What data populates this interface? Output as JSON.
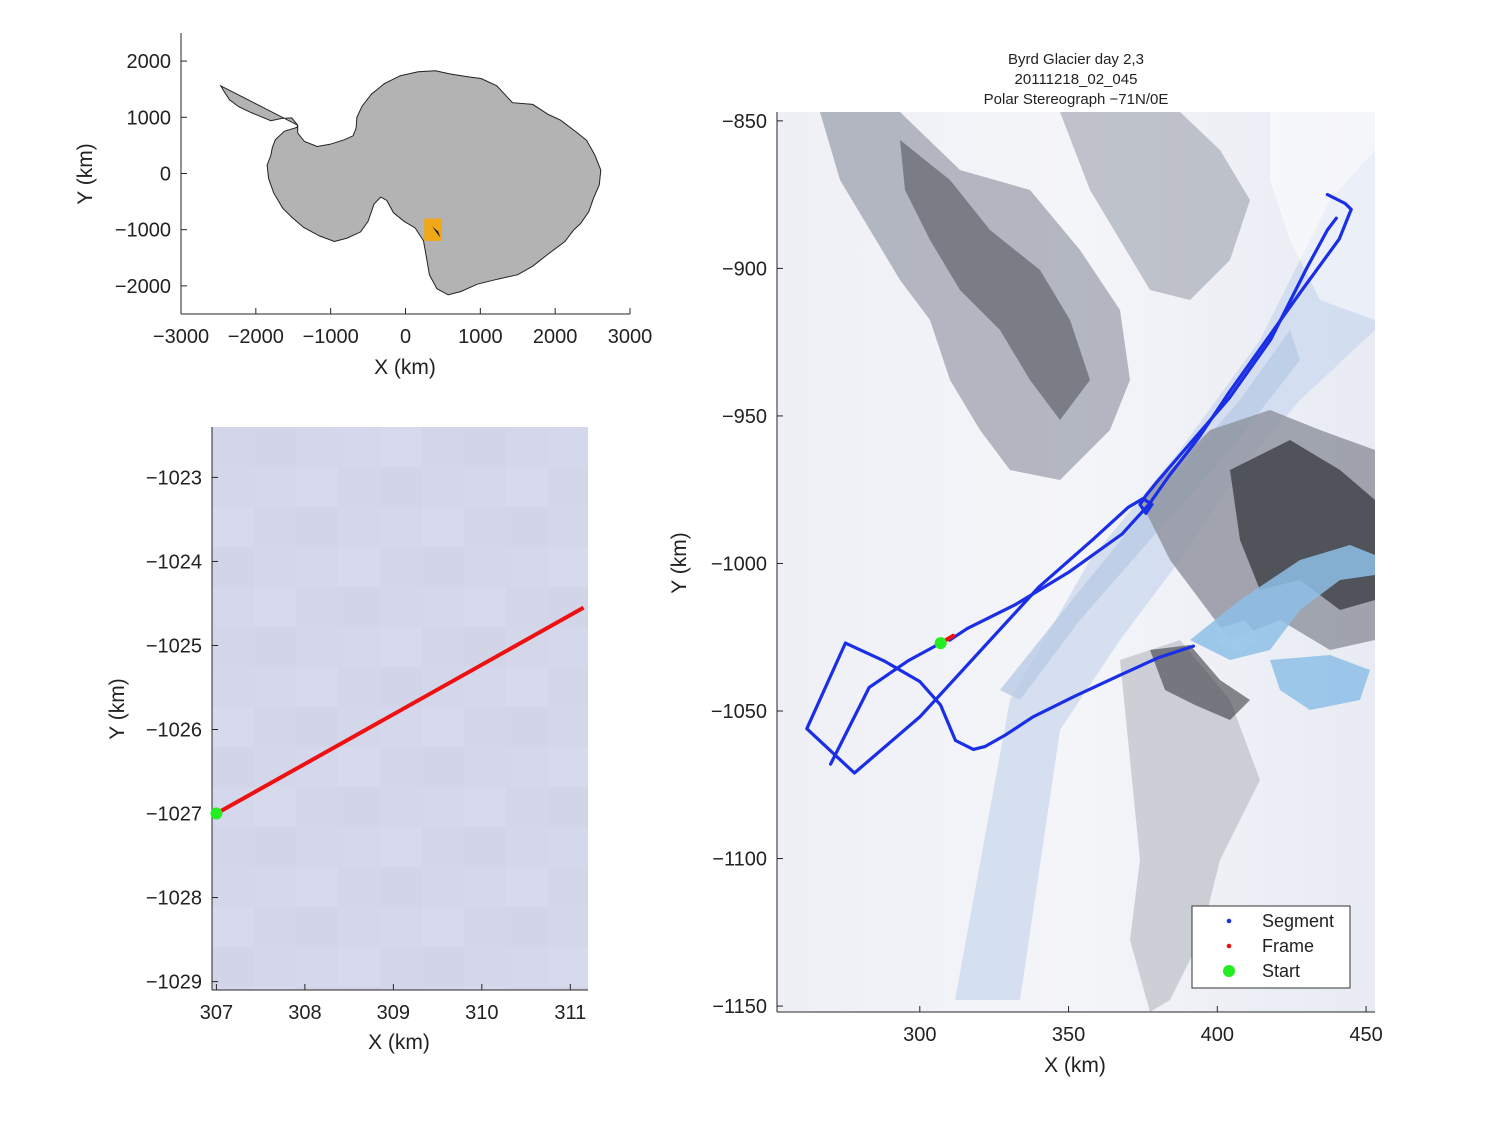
{
  "chart_data": [
    {
      "id": "overview",
      "type": "map",
      "xlabel": "X (km)",
      "ylabel": "Y (km)",
      "xlim": [
        -3000,
        3000
      ],
      "ylim": [
        -2500,
        2500
      ],
      "xticks": [
        -3000,
        -2000,
        -1000,
        0,
        1000,
        2000,
        3000
      ],
      "yticks": [
        -2000,
        -1000,
        0,
        1000,
        2000
      ],
      "xtick_labels": [
        "−3000",
        "−2000",
        "−1000",
        "0",
        "1000",
        "2000",
        "3000"
      ],
      "ytick_labels": [
        "−2000",
        "−1000",
        "0",
        "1000",
        "2000"
      ],
      "land_color": "#b3b3b3",
      "highlight_box": {
        "x": [
          250,
          480
        ],
        "y": [
          -1200,
          -800
        ],
        "color": "#f0a818"
      },
      "coastline": [
        [
          -2470,
          1560
        ],
        [
          -2420,
          1450
        ],
        [
          -2350,
          1310
        ],
        [
          -2230,
          1190
        ],
        [
          -2090,
          1100
        ],
        [
          -1930,
          1010
        ],
        [
          -1800,
          940
        ],
        [
          -1650,
          980
        ],
        [
          -1520,
          990
        ],
        [
          -1440,
          860
        ],
        [
          -1440,
          720
        ],
        [
          -1350,
          570
        ],
        [
          -1180,
          480
        ],
        [
          -1010,
          520
        ],
        [
          -820,
          600
        ],
        [
          -700,
          670
        ],
        [
          -660,
          810
        ],
        [
          -650,
          1000
        ],
        [
          -580,
          1200
        ],
        [
          -450,
          1420
        ],
        [
          -280,
          1600
        ],
        [
          -70,
          1740
        ],
        [
          170,
          1810
        ],
        [
          400,
          1830
        ],
        [
          600,
          1770
        ],
        [
          830,
          1720
        ],
        [
          1010,
          1690
        ],
        [
          1220,
          1560
        ],
        [
          1430,
          1260
        ],
        [
          1700,
          1230
        ],
        [
          1910,
          1050
        ],
        [
          2070,
          950
        ],
        [
          2280,
          740
        ],
        [
          2420,
          590
        ],
        [
          2530,
          330
        ],
        [
          2610,
          60
        ],
        [
          2590,
          -200
        ],
        [
          2510,
          -450
        ],
        [
          2450,
          -680
        ],
        [
          2340,
          -890
        ],
        [
          2250,
          -1000
        ],
        [
          2130,
          -1210
        ],
        [
          1910,
          -1430
        ],
        [
          1700,
          -1650
        ],
        [
          1500,
          -1800
        ],
        [
          1230,
          -1880
        ],
        [
          960,
          -1970
        ],
        [
          740,
          -2100
        ],
        [
          570,
          -2160
        ],
        [
          420,
          -2050
        ],
        [
          320,
          -1800
        ],
        [
          280,
          -1500
        ],
        [
          240,
          -1200
        ],
        [
          130,
          -970
        ],
        [
          -20,
          -850
        ],
        [
          -160,
          -700
        ],
        [
          -250,
          -480
        ],
        [
          -330,
          -420
        ],
        [
          -420,
          -540
        ],
        [
          -500,
          -850
        ],
        [
          -600,
          -1040
        ],
        [
          -780,
          -1150
        ],
        [
          -950,
          -1210
        ],
        [
          -1150,
          -1110
        ],
        [
          -1360,
          -960
        ],
        [
          -1510,
          -790
        ],
        [
          -1640,
          -620
        ],
        [
          -1760,
          -350
        ],
        [
          -1830,
          -90
        ],
        [
          -1850,
          150
        ],
        [
          -1800,
          320
        ],
        [
          -1780,
          460
        ],
        [
          -1740,
          600
        ],
        [
          -1620,
          750
        ],
        [
          -1450,
          820
        ],
        [
          -1440,
          860
        ]
      ]
    },
    {
      "id": "zoom",
      "type": "line",
      "xlabel": "X (km)",
      "ylabel": "Y (km)",
      "xlim": [
        306.95,
        311.2
      ],
      "ylim": [
        -1029.1,
        -1022.4
      ],
      "xticks": [
        307,
        308,
        309,
        310,
        311
      ],
      "yticks": [
        -1029,
        -1028,
        -1027,
        -1026,
        -1025,
        -1024,
        -1023
      ],
      "xtick_labels": [
        "307",
        "308",
        "309",
        "310",
        "311"
      ],
      "ytick_labels": [
        "−1029",
        "−1028",
        "−1027",
        "−1026",
        "−1025",
        "−1024",
        "−1023"
      ],
      "background_color": "#d4d7ea",
      "series": [
        {
          "name": "Frame",
          "color": "#ee1111",
          "x": [
            307.0,
            311.15
          ],
          "y": [
            -1027.0,
            -1024.55
          ]
        }
      ],
      "start": {
        "name": "Start",
        "x": 307.0,
        "y": -1027.0,
        "color": "#22ee22"
      }
    },
    {
      "id": "main",
      "type": "line",
      "title_lines": [
        "Byrd Glacier day 2,3",
        "20111218_02_045",
        "Polar Stereograph −71N/0E"
      ],
      "xlabel": "X (km)",
      "ylabel": "Y (km)",
      "xlim": [
        252,
        453
      ],
      "ylim": [
        -1152,
        -847
      ],
      "xticks": [
        300,
        350,
        400,
        450
      ],
      "yticks": [
        -1150,
        -1100,
        -1050,
        -1000,
        -950,
        -900,
        -850
      ],
      "xtick_labels": [
        "300",
        "350",
        "400",
        "450"
      ],
      "ytick_labels": [
        "−1150",
        "−1100",
        "−1050",
        "−1000",
        "−950",
        "−900",
        "−850"
      ],
      "series": [
        {
          "name": "Segment",
          "color": "#1a2ee6",
          "paths": [
            {
              "x": [
                392,
                380,
                367,
                352,
                338,
                329,
                322,
                318,
                312,
                307,
                300,
                288,
                275,
                262,
                278,
                300,
                320,
                340,
                358,
                370,
                375,
                378,
                376,
                374,
                376,
                380,
                392,
                404,
                418,
                430,
                437,
                440
              ],
              "y": [
                -1028,
                -1032,
                -1038,
                -1045,
                -1052,
                -1058,
                -1062,
                -1063,
                -1060,
                -1048,
                -1040,
                -1033,
                -1027,
                -1056,
                -1071,
                -1052,
                -1030,
                -1008,
                -992,
                -981,
                -978,
                -980,
                -983,
                -980,
                -977,
                -972,
                -958,
                -944,
                -924,
                -900,
                -887,
                -883
              ]
            },
            {
              "x": [
                437,
                443,
                445,
                441,
                428,
                416,
                404,
                394,
                384,
                377,
                368,
                350,
                332,
                316,
                310
              ],
              "y": [
                -875,
                -878,
                -880,
                -890,
                -908,
                -925,
                -942,
                -957,
                -970,
                -980,
                -990,
                -1003,
                -1014,
                -1022,
                -1026
              ]
            },
            {
              "x": [
                307,
                296,
                283,
                270
              ],
              "y": [
                -1027,
                -1033,
                -1042,
                -1068
              ]
            }
          ]
        },
        {
          "name": "Frame",
          "color": "#ee1111",
          "paths": [
            {
              "x": [
                307,
                311.2
              ],
              "y": [
                -1027,
                -1024.5
              ]
            }
          ]
        }
      ],
      "start": {
        "name": "Start",
        "x": 307,
        "y": -1027,
        "color": "#22ee22"
      },
      "legend": {
        "placement": "bottom-right",
        "entries": [
          {
            "label": "Segment",
            "color": "#1a2ee6",
            "marker": "dot"
          },
          {
            "label": "Frame",
            "color": "#ee1111",
            "marker": "dot"
          },
          {
            "label": "Start",
            "color": "#22ee22",
            "marker": "circle"
          }
        ]
      }
    }
  ]
}
